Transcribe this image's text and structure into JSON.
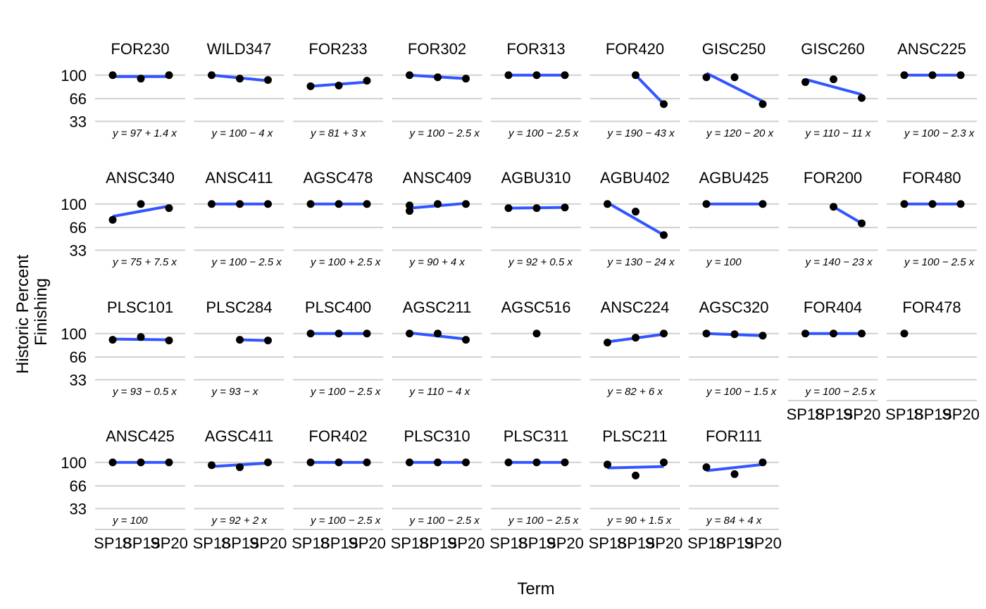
{
  "chart_data": {
    "type": "scatter",
    "layout": "faceted",
    "xlabel": "Term",
    "ylabel_lines": [
      "Historic Percent",
      "Finishing"
    ],
    "x_categories": [
      "SP18",
      "SP19",
      "SP20"
    ],
    "yticks": [
      33,
      66,
      100
    ],
    "ylim": [
      16,
      110
    ],
    "colors": {
      "points": "#000000",
      "fit_line": "#3355FF",
      "grid": "#D0D0D0"
    },
    "facets": [
      {
        "name": "FOR230",
        "points": [
          [
            "SP18",
            100
          ],
          [
            "SP19",
            95
          ],
          [
            "SP20",
            100
          ]
        ],
        "fit": [
          98,
          98
        ],
        "equation": "y = 97 + 1.4 x"
      },
      {
        "name": "WILD347",
        "points": [
          [
            "SP18",
            100
          ],
          [
            "SP19",
            95
          ],
          [
            "SP20",
            93
          ]
        ],
        "fit": [
          100,
          92
        ],
        "equation": "y = 100 − 4 x"
      },
      {
        "name": "FOR233",
        "points": [
          [
            "SP18",
            84
          ],
          [
            "SP19",
            85
          ],
          [
            "SP20",
            92
          ]
        ],
        "fit": [
          84,
          90
        ],
        "equation": "y = 81 + 3 x"
      },
      {
        "name": "FOR302",
        "points": [
          [
            "SP18",
            100
          ],
          [
            "SP19",
            97
          ],
          [
            "SP20",
            95
          ]
        ],
        "fit": [
          100,
          95
        ],
        "equation": "y = 100 − 2.5 x"
      },
      {
        "name": "FOR313",
        "points": [
          [
            "SP18",
            100
          ],
          [
            "SP19",
            100
          ],
          [
            "SP20",
            100
          ]
        ],
        "fit": [
          100,
          100
        ],
        "equation": "y = 100 − 2.5 x"
      },
      {
        "name": "FOR420",
        "points": [
          [
            "SP19",
            100
          ],
          [
            "SP20",
            58
          ]
        ],
        "fit": [
          100,
          58
        ],
        "equation": "y = 190 − 43 x"
      },
      {
        "name": "GISC250",
        "points": [
          [
            "SP18",
            97
          ],
          [
            "SP19",
            97
          ],
          [
            "SP20",
            58
          ]
        ],
        "fit": [
          103,
          62
        ],
        "equation": "y = 120 − 20 x"
      },
      {
        "name": "GISC260",
        "points": [
          [
            "SP18",
            90
          ],
          [
            "SP19",
            94
          ],
          [
            "SP20",
            67
          ]
        ],
        "fit": [
          94,
          72
        ],
        "equation": "y = 110 − 11 x"
      },
      {
        "name": "ANSC225",
        "points": [
          [
            "SP18",
            100
          ],
          [
            "SP19",
            100
          ],
          [
            "SP20",
            100
          ]
        ],
        "fit": [
          100,
          100
        ],
        "equation": "y = 100 − 2.3 x"
      },
      {
        "name": "ANSC340",
        "points": [
          [
            "SP18",
            77
          ],
          [
            "SP19",
            100
          ],
          [
            "SP20",
            94
          ]
        ],
        "fit": [
          82,
          97
        ],
        "equation": "y = 75 + 7.5 x"
      },
      {
        "name": "ANSC411",
        "points": [
          [
            "SP18",
            100
          ],
          [
            "SP19",
            100
          ],
          [
            "SP20",
            100
          ]
        ],
        "fit": [
          100,
          100
        ],
        "equation": "y = 100 − 2.5 x"
      },
      {
        "name": "AGSC478",
        "points": [
          [
            "SP18",
            100
          ],
          [
            "SP19",
            100
          ],
          [
            "SP20",
            100
          ]
        ],
        "fit": [
          100,
          100
        ],
        "equation": "y = 100 + 2.5 x"
      },
      {
        "name": "ANSC409",
        "points": [
          [
            "SP18",
            98
          ],
          [
            "SP18",
            90
          ],
          [
            "SP19",
            100
          ],
          [
            "SP20",
            100
          ]
        ],
        "fit": [
          94,
          101
        ],
        "equation": "y = 90 + 4 x"
      },
      {
        "name": "AGBU310",
        "points": [
          [
            "SP18",
            94
          ],
          [
            "SP19",
            94
          ],
          [
            "SP20",
            95
          ]
        ],
        "fit": [
          94,
          95
        ],
        "equation": "y = 92 + 0.5 x"
      },
      {
        "name": "AGBU402",
        "points": [
          [
            "SP18",
            100
          ],
          [
            "SP19",
            89
          ],
          [
            "SP20",
            55
          ]
        ],
        "fit": [
          102,
          55
        ],
        "equation": "y = 130 − 24 x"
      },
      {
        "name": "AGBU425",
        "points": [
          [
            "SP18",
            100
          ],
          [
            "SP20",
            100
          ]
        ],
        "fit": [
          100,
          100
        ],
        "equation": "y = 100"
      },
      {
        "name": "FOR200",
        "points": [
          [
            "SP19",
            96
          ],
          [
            "SP20",
            72
          ]
        ],
        "fit": [
          96,
          72
        ],
        "equation": "y = 140 − 23 x"
      },
      {
        "name": "FOR480",
        "points": [
          [
            "SP18",
            100
          ],
          [
            "SP19",
            100
          ],
          [
            "SP20",
            100
          ]
        ],
        "fit": [
          100,
          100
        ],
        "equation": "y = 100 − 2.5 x"
      },
      {
        "name": "PLSC101",
        "points": [
          [
            "SP18",
            91
          ],
          [
            "SP19",
            95
          ],
          [
            "SP20",
            90
          ]
        ],
        "fit": [
          92,
          91
        ],
        "equation": "y = 93 − 0.5 x"
      },
      {
        "name": "PLSC284",
        "points": [
          [
            "SP19",
            91
          ],
          [
            "SP20",
            90
          ]
        ],
        "fit": [
          91,
          90
        ],
        "equation": "y = 93 − x"
      },
      {
        "name": "PLSC400",
        "points": [
          [
            "SP18",
            100
          ],
          [
            "SP19",
            100
          ],
          [
            "SP20",
            100
          ]
        ],
        "fit": [
          100,
          100
        ],
        "equation": "y = 100 − 2.5 x"
      },
      {
        "name": "AGSC211",
        "points": [
          [
            "SP18",
            100
          ],
          [
            "SP19",
            100
          ],
          [
            "SP20",
            91
          ]
        ],
        "fit": [
          101,
          92
        ],
        "equation": "y = 110 − 4 x"
      },
      {
        "name": "AGSC516",
        "points": [
          [
            "SP19",
            100
          ]
        ],
        "fit": null,
        "equation": ""
      },
      {
        "name": "ANSC224",
        "points": [
          [
            "SP18",
            87
          ],
          [
            "SP19",
            94
          ],
          [
            "SP20",
            100
          ]
        ],
        "fit": [
          88,
          99
        ],
        "equation": "y = 82 + 6 x"
      },
      {
        "name": "AGSC320",
        "points": [
          [
            "SP18",
            100
          ],
          [
            "SP19",
            99
          ],
          [
            "SP20",
            97
          ]
        ],
        "fit": [
          100,
          97
        ],
        "equation": "y = 100 − 1.5 x"
      },
      {
        "name": "FOR404",
        "points": [
          [
            "SP18",
            100
          ],
          [
            "SP19",
            100
          ],
          [
            "SP20",
            100
          ]
        ],
        "fit": [
          100,
          100
        ],
        "equation": "y = 100 − 2.5 x"
      },
      {
        "name": "FOR478",
        "points": [
          [
            "SP18",
            100
          ]
        ],
        "fit": null,
        "equation": ""
      },
      {
        "name": "ANSC425",
        "points": [
          [
            "SP18",
            100
          ],
          [
            "SP19",
            100
          ],
          [
            "SP20",
            100
          ]
        ],
        "fit": [
          100,
          100
        ],
        "equation": "y = 100"
      },
      {
        "name": "AGSC411",
        "points": [
          [
            "SP18",
            96
          ],
          [
            "SP19",
            93
          ],
          [
            "SP20",
            100
          ]
        ],
        "fit": [
          94,
          99
        ],
        "equation": "y = 92 + 2 x"
      },
      {
        "name": "FOR402",
        "points": [
          [
            "SP18",
            100
          ],
          [
            "SP19",
            100
          ],
          [
            "SP20",
            100
          ]
        ],
        "fit": [
          100,
          100
        ],
        "equation": "y = 100 − 2.5 x"
      },
      {
        "name": "PLSC310",
        "points": [
          [
            "SP18",
            100
          ],
          [
            "SP19",
            100
          ],
          [
            "SP20",
            100
          ]
        ],
        "fit": [
          100,
          100
        ],
        "equation": "y = 100 − 2.5 x"
      },
      {
        "name": "PLSC311",
        "points": [
          [
            "SP18",
            100
          ],
          [
            "SP19",
            100
          ],
          [
            "SP20",
            100
          ]
        ],
        "fit": [
          100,
          100
        ],
        "equation": "y = 100 − 2.5 x"
      },
      {
        "name": "PLSC211",
        "points": [
          [
            "SP18",
            97
          ],
          [
            "SP19",
            81
          ],
          [
            "SP20",
            100
          ]
        ],
        "fit": [
          92,
          94
        ],
        "equation": "y = 90 + 1.5 x"
      },
      {
        "name": "FOR111",
        "points": [
          [
            "SP18",
            93
          ],
          [
            "SP19",
            83
          ],
          [
            "SP20",
            100
          ]
        ],
        "fit": [
          88,
          97
        ],
        "equation": "y = 84 + 4 x"
      }
    ]
  }
}
